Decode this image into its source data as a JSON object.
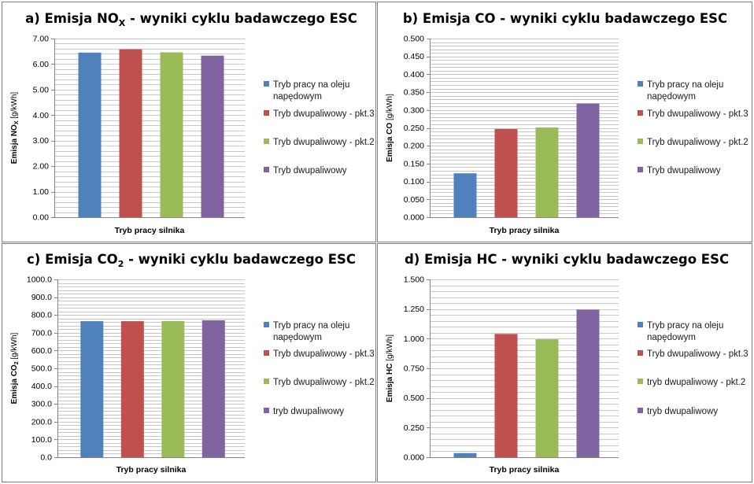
{
  "chart_data": [
    {
      "type": "bar",
      "title": {
        "prefix": "a) Emisja NO",
        "sub": "X",
        "suffix": " - wyniki cyklu badawczego ESC"
      },
      "ylabel": {
        "main": "Emisja NO",
        "sub": "X",
        "unit": " [g/kWh]"
      },
      "xlabel": "Tryb pracy silnika",
      "ylim": [
        0,
        7
      ],
      "ticks": [
        0,
        1,
        2,
        3,
        4,
        5,
        6,
        7
      ],
      "tick_labels": [
        "0.00",
        "1.00",
        "2.00",
        "3.00",
        "4.00",
        "5.00",
        "6.00",
        "7.00"
      ],
      "minor_step": 0.2,
      "series": [
        {
          "name": "Tryb pracy na oleju napędowym",
          "value": 6.45,
          "color": "#4f81bd"
        },
        {
          "name": "Tryb dwupaliwowy - pkt.3",
          "value": 6.58,
          "color": "#c0504d"
        },
        {
          "name": "Tryb dwupaliwowy - pkt.2",
          "value": 6.46,
          "color": "#9bbb59"
        },
        {
          "name": "Tryb dwupaliwowy",
          "value": 6.33,
          "color": "#8064a2"
        }
      ]
    },
    {
      "type": "bar",
      "title": {
        "prefix": "b) Emisja CO - wyniki cyklu badawczego ESC",
        "sub": "",
        "suffix": ""
      },
      "ylabel": {
        "main": "Emisja CO",
        "sub": "",
        "unit": " [g/kWh]"
      },
      "xlabel": "Tryb pracy silnika",
      "ylim": [
        0,
        0.5
      ],
      "ticks": [
        0,
        0.05,
        0.1,
        0.15,
        0.2,
        0.25,
        0.3,
        0.35,
        0.4,
        0.45,
        0.5
      ],
      "tick_labels": [
        "0.000",
        "0.050",
        "0.100",
        "0.150",
        "0.200",
        "0.250",
        "0.300",
        "0.350",
        "0.400",
        "0.450",
        "0.500"
      ],
      "minor_step": 0.01,
      "series": [
        {
          "name": "Tryb pracy na oleju napędowym",
          "value": 0.123,
          "color": "#4f81bd"
        },
        {
          "name": "Tryb dwupaliwowy - pkt.3",
          "value": 0.247,
          "color": "#c0504d"
        },
        {
          "name": "Tryb dwupaliwowy - pkt.2",
          "value": 0.251,
          "color": "#9bbb59"
        },
        {
          "name": "Tryb dwupaliwowy",
          "value": 0.318,
          "color": "#8064a2"
        }
      ]
    },
    {
      "type": "bar",
      "title": {
        "prefix": "c) Emisja CO",
        "sub": "2",
        "suffix": " - wyniki cyklu badawczego ESC"
      },
      "ylabel": {
        "main": "Emisja CO",
        "sub": "2",
        "unit": " [g/kWh]"
      },
      "xlabel": "Tryb pracy silnika",
      "ylim": [
        0,
        1000
      ],
      "ticks": [
        0,
        100,
        200,
        300,
        400,
        500,
        600,
        700,
        800,
        900,
        1000
      ],
      "tick_labels": [
        "0.0",
        "100.0",
        "200.0",
        "300.0",
        "400.0",
        "500.0",
        "600.0",
        "700.0",
        "800.0",
        "900.0",
        "1000.0"
      ],
      "minor_step": 20,
      "series": [
        {
          "name": "Tryb pracy na oleju napędowym",
          "value": 765,
          "color": "#4f81bd"
        },
        {
          "name": "Tryb dwupaliwowy - pkt.3",
          "value": 765,
          "color": "#c0504d"
        },
        {
          "name": "Tryb dwupaliwowy - pkt.2",
          "value": 766,
          "color": "#9bbb59"
        },
        {
          "name": "tryb dwupaliwowy",
          "value": 770,
          "color": "#8064a2"
        }
      ]
    },
    {
      "type": "bar",
      "title": {
        "prefix": "d) Emisja HC - wyniki cyklu badawczego ESC",
        "sub": "",
        "suffix": ""
      },
      "ylabel": {
        "main": "Emisja HC",
        "sub": "",
        "unit": " [g/kWh]"
      },
      "xlabel": "Tryb pracy silnika",
      "ylim": [
        0,
        1.5
      ],
      "ticks": [
        0,
        0.25,
        0.5,
        0.75,
        1.0,
        1.25,
        1.5
      ],
      "tick_labels": [
        "0.000",
        "0.250",
        "0.500",
        "0.750",
        "1.000",
        "1.250",
        "1.500"
      ],
      "minor_step": 0.05,
      "series": [
        {
          "name": "Tryb pracy na oleju napędowym",
          "value": 0.035,
          "color": "#4f81bd"
        },
        {
          "name": "Tryb dwupaliwowy - pkt.3",
          "value": 1.04,
          "color": "#c0504d"
        },
        {
          "name": "tryb dwupaliwowy - pkt.2",
          "value": 0.995,
          "color": "#9bbb59"
        },
        {
          "name": "tryb dwupaliwowy",
          "value": 1.245,
          "color": "#8064a2"
        }
      ]
    }
  ]
}
